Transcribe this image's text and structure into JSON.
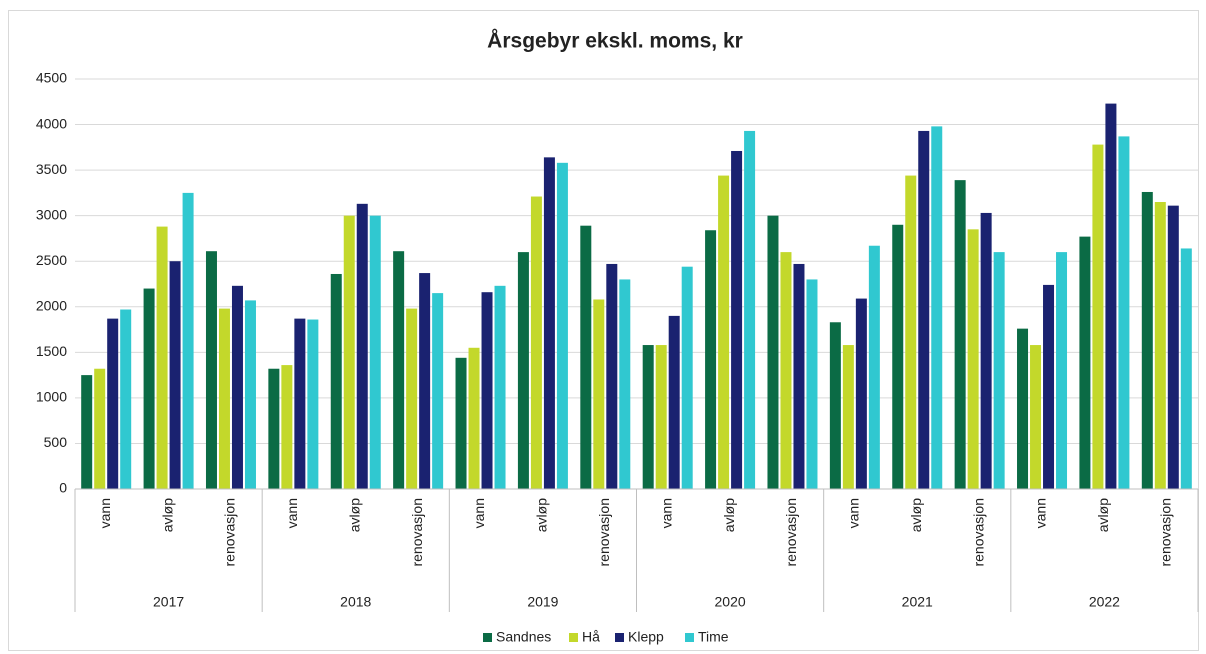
{
  "chart_data": {
    "type": "bar",
    "title": "Årsgebyr ekskl. moms, kr",
    "categories": [
      "vann",
      "avløp",
      "renovasjon",
      "vann",
      "avløp",
      "renovasjon",
      "vann",
      "avløp",
      "renovasjon",
      "vann",
      "avløp",
      "renovasjon",
      "vann",
      "avløp",
      "renovasjon",
      "vann",
      "avløp",
      "renovasjon"
    ],
    "groups": [
      "2017",
      "2018",
      "2019",
      "2020",
      "2021",
      "2022"
    ],
    "series": [
      {
        "name": "Sandnes",
        "color": "#0b6b45",
        "values": [
          1250,
          2200,
          2610,
          1320,
          2360,
          2610,
          1440,
          2600,
          2890,
          1580,
          2840,
          3000,
          1830,
          2900,
          3390,
          1760,
          2770,
          3260
        ]
      },
      {
        "name": "Hå",
        "color": "#c3d82b",
        "values": [
          1320,
          2880,
          1980,
          1360,
          3000,
          1980,
          1550,
          3210,
          2080,
          1580,
          3440,
          2600,
          1580,
          3440,
          2850,
          1580,
          3780,
          3150
        ]
      },
      {
        "name": "Klepp",
        "color": "#1a2270",
        "values": [
          1870,
          2500,
          2230,
          1870,
          3130,
          2370,
          2160,
          3640,
          2470,
          1900,
          3710,
          2470,
          2090,
          3930,
          3030,
          2240,
          4230,
          3110
        ]
      },
      {
        "name": "Time",
        "color": "#30c8d0",
        "values": [
          1970,
          3250,
          2070,
          1860,
          3000,
          2150,
          2230,
          3580,
          2300,
          2440,
          3930,
          2300,
          2670,
          3980,
          2600,
          2600,
          3870,
          2640
        ]
      }
    ],
    "ylim": [
      0,
      4500
    ],
    "yticks": [
      0,
      500,
      1000,
      1500,
      2000,
      2500,
      3000,
      3500,
      4000,
      4500
    ],
    "grid": true,
    "legend": "bottom"
  }
}
